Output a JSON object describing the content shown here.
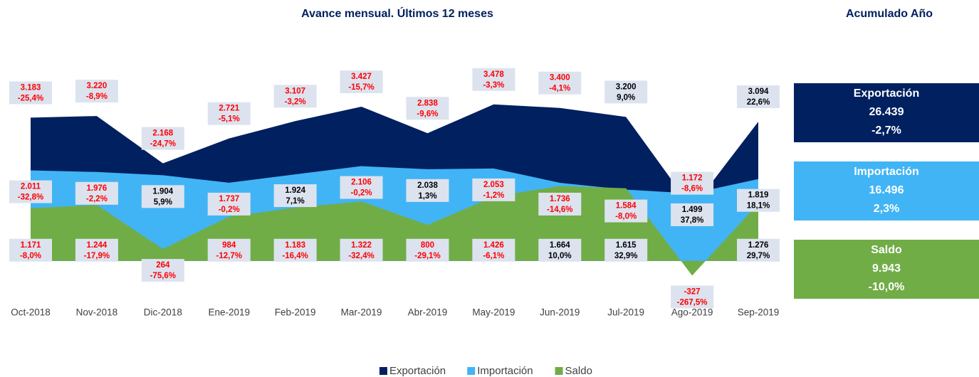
{
  "chart_data": {
    "type": "area",
    "title": "Avance mensual. Últimos 12 meses",
    "categories": [
      "Oct-2018",
      "Nov-2018",
      "Dic-2018",
      "Ene-2019",
      "Feb-2019",
      "Mar-2019",
      "Abr-2019",
      "May-2019",
      "Jun-2019",
      "Jul-2019",
      "Ago-2019",
      "Sep-2019"
    ],
    "ylim": [
      -1000,
      4850
    ],
    "series": [
      {
        "name": "Exportación",
        "color": "#002060",
        "values": [
          3183,
          3220,
          2168,
          2721,
          3107,
          3427,
          2838,
          3478,
          3400,
          3200,
          1172,
          3094
        ],
        "value_labels": [
          "3.183",
          "3.220",
          "2.168",
          "2.721",
          "3.107",
          "3.427",
          "2.838",
          "3.478",
          "3.400",
          "3.200",
          "1.172",
          "3.094"
        ],
        "change_labels": [
          "-25,4%",
          "-8,9%",
          "-24,7%",
          "-5,1%",
          "-3,2%",
          "-15,7%",
          "-9,6%",
          "-3,3%",
          "-4,1%",
          "9,0%",
          "-8,6%",
          "22,6%"
        ]
      },
      {
        "name": "Importación",
        "color": "#41b4f5",
        "values": [
          2011,
          1976,
          1904,
          1737,
          1924,
          2106,
          2038,
          2053,
          1736,
          1584,
          1499,
          1819
        ],
        "value_labels": [
          "2.011",
          "1.976",
          "1.904",
          "1.737",
          "1.924",
          "2.106",
          "2.038",
          "2.053",
          "1.736",
          "1.584",
          "1.499",
          "1.819"
        ],
        "change_labels": [
          "-32,8%",
          "-2,2%",
          "5,9%",
          "-0,2%",
          "7,1%",
          "-0,2%",
          "1,3%",
          "-1,2%",
          "-14,6%",
          "-8,0%",
          "37,8%",
          "18,1%"
        ]
      },
      {
        "name": "Saldo",
        "color": "#70ad47",
        "values": [
          1171,
          1244,
          264,
          984,
          1183,
          1322,
          800,
          1426,
          1664,
          1615,
          -327,
          1276
        ],
        "value_labels": [
          "1.171",
          "1.244",
          "264",
          "984",
          "1.183",
          "1.322",
          "800",
          "1.426",
          "1.664",
          "1.615",
          "-327",
          "1.276"
        ],
        "change_labels": [
          "-8,0%",
          "-17,9%",
          "-75,6%",
          "-12,7%",
          "-16,4%",
          "-32,4%",
          "-29,1%",
          "-6,1%",
          "10,0%",
          "32,9%",
          "-267,5%",
          "29,7%"
        ]
      }
    ],
    "summary_title": "Acumulado Año",
    "summary": [
      {
        "name": "Exportación",
        "value": "26.439",
        "change": "-2,7%"
      },
      {
        "name": "Importación",
        "value": "16.496",
        "change": "2,3%"
      },
      {
        "name": "Saldo",
        "value": "9.943",
        "change": "-10,0%"
      }
    ],
    "legend": "bottom"
  }
}
